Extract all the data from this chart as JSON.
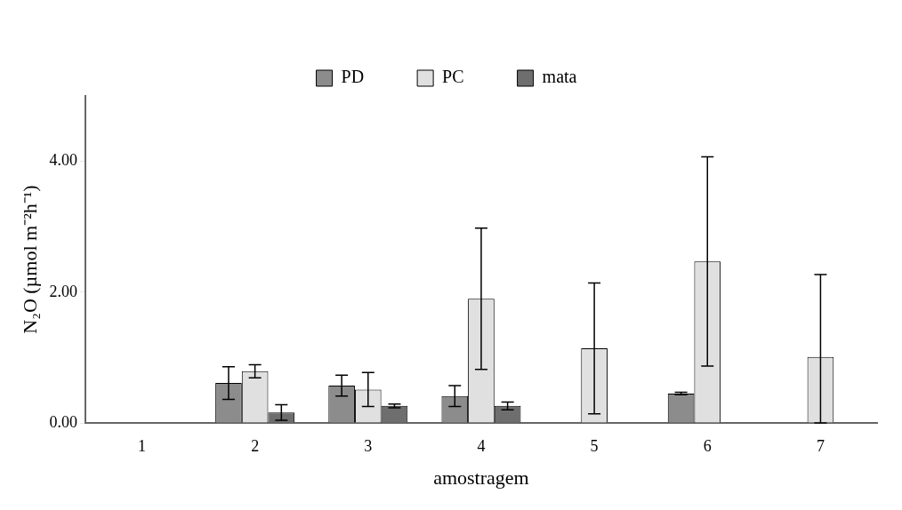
{
  "chart_data": {
    "type": "bar",
    "xlabel": "amostragem",
    "ylabel": "N₂O (µmol m⁻²h⁻¹)",
    "categories": [
      "1",
      "2",
      "3",
      "4",
      "5",
      "6",
      "7"
    ],
    "series": [
      {
        "name": "PD",
        "color": "#8c8c8c",
        "values": [
          0,
          0.61,
          0.57,
          0.41,
          0,
          0.45,
          0
        ],
        "errors": [
          0,
          0.25,
          0.16,
          0.16,
          0,
          0.02,
          0
        ]
      },
      {
        "name": "PC",
        "color": "#e0e0e0",
        "values": [
          0,
          0.79,
          0.51,
          1.9,
          1.14,
          2.47,
          1.01
        ],
        "errors": [
          0,
          0.1,
          0.26,
          1.08,
          1.0,
          1.6,
          [
            0,
            2.27
          ]
        ]
      },
      {
        "name": "mata",
        "color": "#6e6e6e",
        "values": [
          0,
          0.16,
          0.26,
          0.26,
          0,
          0,
          0
        ],
        "errors": [
          0,
          0.12,
          0.03,
          0.06,
          0,
          0,
          0
        ]
      }
    ],
    "ylim": [
      0,
      5
    ],
    "yticks": [
      {
        "value": 0,
        "label": "0.00"
      },
      {
        "value": 2,
        "label": "2.00"
      },
      {
        "value": 4,
        "label": "4.00"
      }
    ],
    "grid": false,
    "legend": "top"
  }
}
